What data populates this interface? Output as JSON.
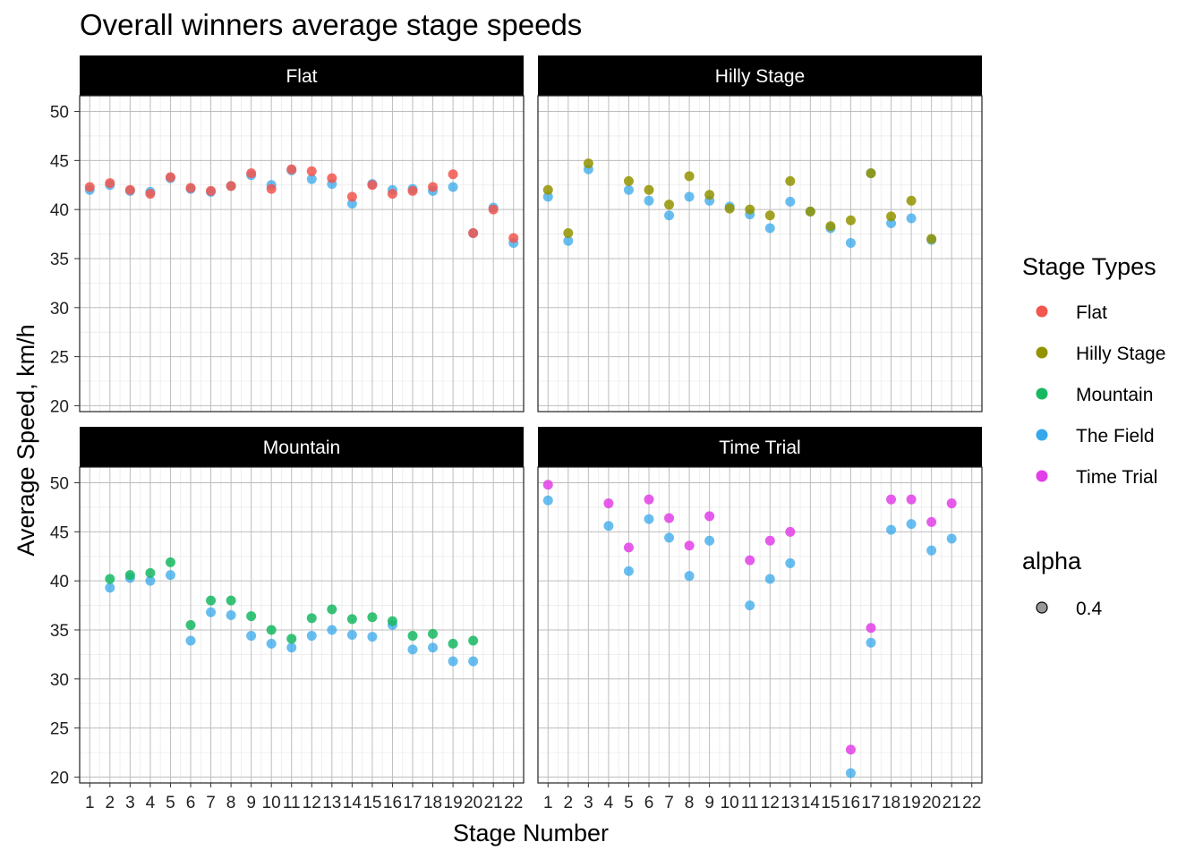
{
  "title": "Overall winners average stage speeds",
  "xlabel": "Stage Number",
  "ylabel": "Average Speed, km/h",
  "colors": {
    "Flat": "#F2564E",
    "Hilly Stage": "#939300",
    "Mountain": "#16B862",
    "The Field": "#37A8EB",
    "Time Trial": "#E23FE8"
  },
  "legend": {
    "color_title": "Stage Types",
    "color_items": [
      "Flat",
      "Hilly Stage",
      "Mountain",
      "The Field",
      "Time Trial"
    ],
    "alpha_title": "alpha",
    "alpha_items": [
      "0.4"
    ]
  },
  "chart_data": {
    "type": "scatter",
    "facets": [
      "Flat",
      "Hilly Stage",
      "Mountain",
      "Time Trial"
    ],
    "x_ticks": [
      "1",
      "2",
      "3",
      "4",
      "5",
      "6",
      "7",
      "8",
      "9",
      "10",
      "11",
      "12",
      "13",
      "14",
      "15",
      "16",
      "17",
      "18",
      "19",
      "20",
      "21",
      "22"
    ],
    "y_ticks": [
      "20",
      "25",
      "30",
      "35",
      "40",
      "45",
      "50"
    ],
    "xlim": [
      0.5,
      22.5
    ],
    "ylim": [
      19.4,
      51.6
    ],
    "grid": true,
    "legend_position": "right",
    "panels": [
      {
        "facet": "Flat",
        "winner": {
          "x": [
            1,
            2,
            3,
            4,
            5,
            6,
            7,
            8,
            9,
            10,
            11,
            12,
            13,
            14,
            15,
            16,
            17,
            18,
            19,
            20,
            21,
            22
          ],
          "y": [
            42.3,
            42.7,
            42.0,
            41.6,
            43.3,
            42.2,
            41.9,
            42.4,
            43.7,
            42.1,
            44.1,
            43.9,
            43.2,
            41.3,
            42.5,
            41.6,
            41.9,
            42.3,
            43.6,
            37.6,
            40.0,
            37.1
          ]
        },
        "field": {
          "x": [
            1,
            2,
            3,
            4,
            5,
            6,
            7,
            8,
            9,
            10,
            11,
            12,
            13,
            14,
            15,
            16,
            17,
            18,
            19,
            20,
            21,
            22
          ],
          "y": [
            42.0,
            42.5,
            41.9,
            41.8,
            43.2,
            42.1,
            41.8,
            42.4,
            43.5,
            42.5,
            44.0,
            43.1,
            42.6,
            40.6,
            42.6,
            42.0,
            42.1,
            41.9,
            42.3,
            37.6,
            40.2,
            36.6
          ]
        }
      },
      {
        "facet": "Hilly Stage",
        "winner": {
          "x": [
            1,
            2,
            3,
            5,
            6,
            7,
            8,
            9,
            10,
            11,
            12,
            13,
            14,
            15,
            16,
            17,
            18,
            19,
            20
          ],
          "y": [
            42.0,
            37.6,
            44.7,
            42.9,
            42.0,
            40.5,
            43.4,
            41.5,
            40.1,
            40.0,
            39.4,
            42.9,
            39.8,
            38.3,
            38.9,
            43.7,
            39.3,
            40.9,
            37.0
          ]
        },
        "field": {
          "x": [
            1,
            2,
            3,
            5,
            6,
            7,
            8,
            9,
            10,
            11,
            12,
            13,
            14,
            15,
            16,
            17,
            18,
            19,
            20
          ],
          "y": [
            41.3,
            36.8,
            44.1,
            42.0,
            40.9,
            39.4,
            41.3,
            40.9,
            40.3,
            39.5,
            38.1,
            40.8,
            39.8,
            38.1,
            36.6,
            43.7,
            38.6,
            39.1,
            36.9
          ]
        }
      },
      {
        "facet": "Mountain",
        "winner": {
          "x": [
            2,
            3,
            4,
            5,
            6,
            7,
            8,
            9,
            10,
            11,
            12,
            13,
            14,
            15,
            16,
            17,
            18,
            19,
            20
          ],
          "y": [
            40.2,
            40.6,
            40.8,
            41.9,
            35.5,
            38.0,
            38.0,
            36.4,
            35.0,
            34.1,
            36.2,
            37.1,
            36.1,
            36.3,
            35.9,
            34.4,
            34.6,
            33.6,
            33.9
          ]
        },
        "field": {
          "x": [
            2,
            3,
            4,
            5,
            6,
            7,
            8,
            9,
            10,
            11,
            12,
            13,
            14,
            15,
            16,
            17,
            18,
            19,
            20
          ],
          "y": [
            39.3,
            40.3,
            40.0,
            40.6,
            33.9,
            36.8,
            36.5,
            34.4,
            33.6,
            33.2,
            34.4,
            35.0,
            34.5,
            34.3,
            35.5,
            33.0,
            33.2,
            31.8,
            31.8
          ]
        }
      },
      {
        "facet": "Time Trial",
        "winner": {
          "x": [
            1,
            4,
            5,
            6,
            7,
            8,
            9,
            11,
            12,
            13,
            16,
            17,
            18,
            19,
            20,
            21
          ],
          "y": [
            49.8,
            47.9,
            43.4,
            48.3,
            46.4,
            43.6,
            46.6,
            42.1,
            44.1,
            45.0,
            22.8,
            35.2,
            48.3,
            48.3,
            46.0,
            47.9
          ]
        },
        "field": {
          "x": [
            1,
            4,
            5,
            6,
            7,
            8,
            9,
            11,
            12,
            13,
            16,
            17,
            18,
            19,
            20,
            21
          ],
          "y": [
            48.2,
            45.6,
            41.0,
            46.3,
            44.4,
            40.5,
            44.1,
            37.5,
            40.2,
            41.8,
            20.4,
            33.7,
            45.2,
            45.8,
            43.1,
            44.3
          ]
        }
      }
    ]
  }
}
